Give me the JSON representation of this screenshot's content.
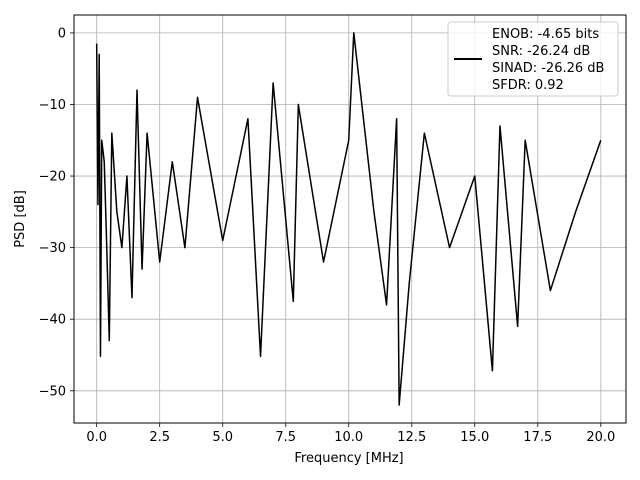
{
  "chart_data": {
    "type": "line",
    "xlabel": "Frequency [MHz]",
    "ylabel": "PSD [dB]",
    "xlim": [
      -0.9,
      21.0
    ],
    "ylim": [
      -54.5,
      2.5
    ],
    "xticks": [
      0.0,
      2.5,
      5.0,
      7.5,
      10.0,
      12.5,
      15.0,
      17.5,
      20.0
    ],
    "xtick_labels": [
      "0.0",
      "2.5",
      "5.0",
      "7.5",
      "10.0",
      "12.5",
      "15.0",
      "17.5",
      "20.0"
    ],
    "yticks": [
      0,
      -10,
      -20,
      -30,
      -40,
      -50
    ],
    "ytick_labels": [
      "0",
      "−10",
      "−20",
      "−30",
      "−40",
      "−50"
    ],
    "grid": true,
    "legend_position": "top-right",
    "legend": [
      "ENOB: -4.65 bits",
      "SNR: -26.24 dB",
      "SINAD: -26.26 dB",
      "SFDR: 0.92"
    ],
    "line_color": "#000000",
    "series": [
      {
        "x": [
          0.0,
          0.05,
          0.1,
          0.15,
          0.2,
          0.3,
          0.4,
          0.5,
          0.6,
          0.8,
          1.0,
          1.2,
          1.4,
          1.6,
          1.8,
          2.0,
          2.5,
          3.0,
          3.5,
          4.0,
          5.0,
          6.0,
          6.5,
          7.0,
          7.8,
          8.0,
          9.0,
          10.0,
          10.2,
          11.0,
          11.5,
          11.9,
          12.0,
          12.4,
          13.0,
          14.0,
          15.0,
          15.7,
          16.0,
          16.7,
          17.0,
          18.0,
          19.0,
          20.0
        ],
        "y": [
          -1.5,
          -24.0,
          -3.0,
          -45.2,
          -15.0,
          -18.0,
          -30.0,
          -43.0,
          -14.0,
          -25.0,
          -30.0,
          -20.0,
          -37.0,
          -8.0,
          -33.0,
          -14.0,
          -32.0,
          -18.0,
          -30.0,
          -9.0,
          -29.0,
          -12.0,
          -45.2,
          -7.0,
          -37.5,
          -10.0,
          -32.0,
          -15.0,
          0.0,
          -25.0,
          -38.0,
          -12.0,
          -52.0,
          -35.0,
          -14.0,
          -30.0,
          -20.0,
          -47.2,
          -13.0,
          -41.0,
          -15.0,
          -36.0,
          -25.0,
          -15.0
        ]
      }
    ]
  }
}
